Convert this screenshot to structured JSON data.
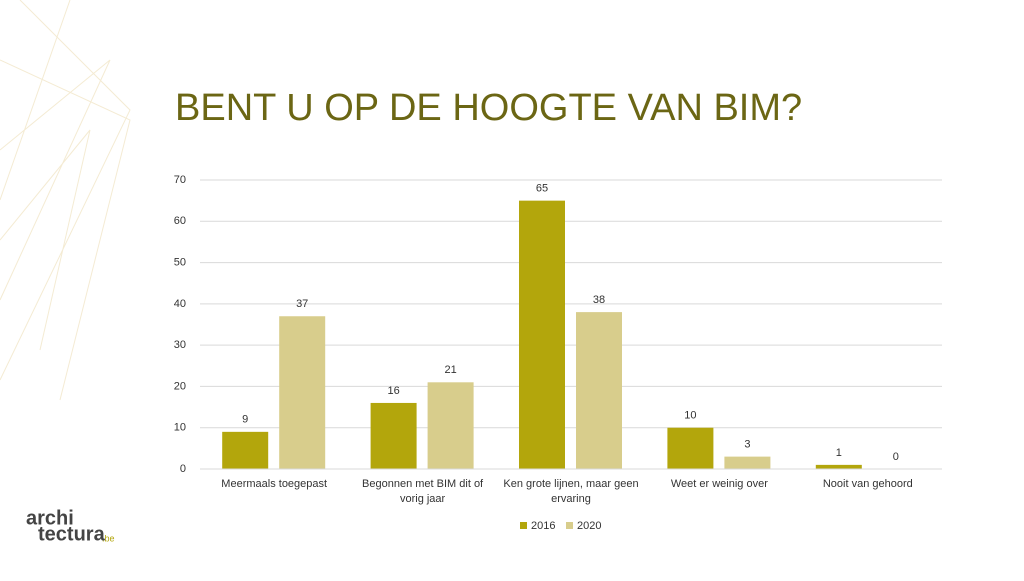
{
  "chart_data": {
    "type": "bar",
    "title": "BENT U OP DE HOOGTE VAN BIM?",
    "categories": [
      "Meermaals toegepast",
      "Begonnen met BIM dit of vorig jaar",
      "Ken grote lijnen, maar geen ervaring",
      "Weet er weinig over",
      "Nooit van gehoord"
    ],
    "series": [
      {
        "name": "2016",
        "color": "#b3a60c",
        "values": [
          9,
          16,
          65,
          10,
          1
        ]
      },
      {
        "name": "2020",
        "color": "#d8cd8c",
        "values": [
          37,
          21,
          38,
          3,
          0
        ]
      }
    ],
    "ylim": [
      0,
      70
    ],
    "yticks": [
      0,
      10,
      20,
      30,
      40,
      50,
      60,
      70
    ],
    "grid": true,
    "legend": "bottom"
  },
  "logo": {
    "line1": "archi",
    "line2": "tectura",
    "suffix": ".be"
  }
}
